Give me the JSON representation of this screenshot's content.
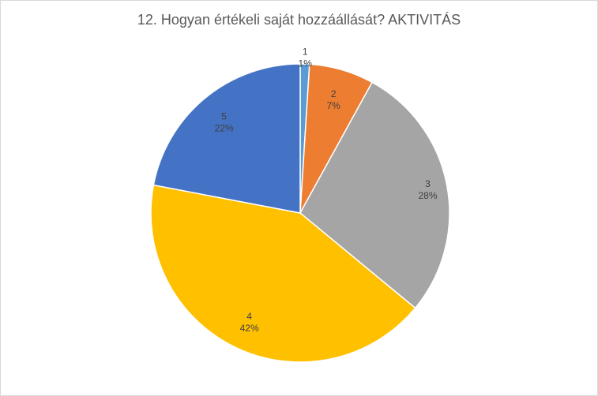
{
  "chart_data": {
    "type": "pie",
    "title": "12. Hogyan értékeli saját hozzáállását? AKTIVITÁS",
    "categories": [
      "1",
      "2",
      "3",
      "4",
      "5"
    ],
    "values": [
      1,
      7,
      28,
      42,
      22
    ],
    "labels": [
      "1%",
      "7%",
      "28%",
      "42%",
      "22%"
    ],
    "colors": [
      "#5b9bd5",
      "#ed7d31",
      "#a5a5a5",
      "#ffc000",
      "#4472c4"
    ],
    "start_angle_deg": 0,
    "direction": "clockwise",
    "legend": "none"
  }
}
